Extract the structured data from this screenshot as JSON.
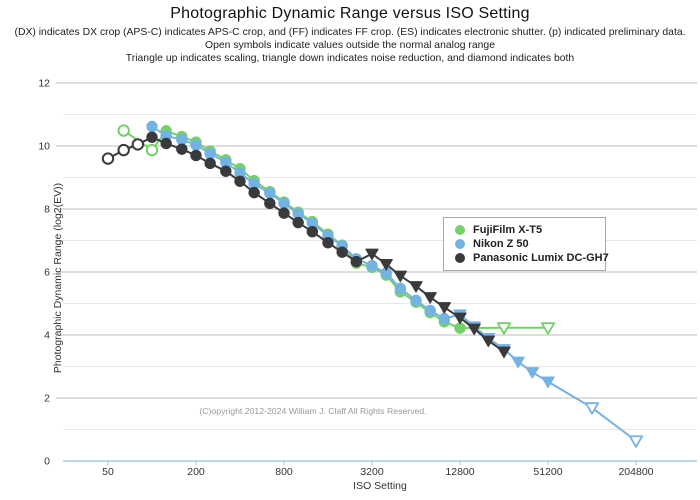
{
  "page": {
    "title": "Photographic Dynamic Range versus ISO Setting",
    "subtitle_lines": [
      "(DX) indicates DX crop (APS-C) indicates APS-C crop, and (FF) indicates FF crop. (ES) indicates electronic shutter. (p) indicated preliminary data.",
      "Open symbols indicate values outside the normal analog range",
      "Triangle up indicates scaling, triangle down indicates noise reduction, and diamond indicates both"
    ],
    "copyright": "(C)opyright 2012-2024 William J. Claff All Rights Reserved."
  },
  "chart_data": {
    "type": "line",
    "title": "Photographic Dynamic Range versus ISO Setting",
    "xlabel": "ISO Setting",
    "ylabel": "Photographic Dynamic Range (log2(EV))",
    "x_scale": "log2",
    "x_ticks": [
      50,
      200,
      800,
      3200,
      12800,
      51200,
      204800
    ],
    "ylim": [
      0,
      12
    ],
    "y_major_ticks": [
      0,
      2,
      4,
      6,
      8,
      10,
      12
    ],
    "grid": true,
    "legend_position": "middle-right",
    "marker_legend": {
      "open": "values outside the normal analog range",
      "triangle_down": "noise reduction",
      "triangle_up": "scaling",
      "diamond": "both"
    },
    "series": [
      {
        "name": "FujiFilm X-T5",
        "color": "#74d168",
        "points": [
          [
            64,
            10.49,
            "o"
          ],
          [
            100,
            9.87,
            "o"
          ],
          [
            125,
            10.48,
            "c"
          ],
          [
            160,
            10.3,
            "c"
          ],
          [
            200,
            10.12,
            "c"
          ],
          [
            250,
            9.84,
            "c"
          ],
          [
            320,
            9.56,
            "c"
          ],
          [
            400,
            9.28,
            "c"
          ],
          [
            500,
            8.9,
            "c"
          ],
          [
            640,
            8.55,
            "c"
          ],
          [
            800,
            8.22,
            "c"
          ],
          [
            1000,
            7.9,
            "c"
          ],
          [
            1250,
            7.6,
            "c"
          ],
          [
            1600,
            7.2,
            "c"
          ],
          [
            2000,
            6.85,
            "c"
          ],
          [
            2500,
            6.28,
            "c"
          ],
          [
            3200,
            6.15,
            "c"
          ],
          [
            4000,
            5.9,
            "c"
          ],
          [
            5000,
            5.37,
            "c"
          ],
          [
            6400,
            5.04,
            "c"
          ],
          [
            8000,
            4.71,
            "c"
          ],
          [
            10000,
            4.42,
            "c"
          ],
          [
            12800,
            4.22,
            "c"
          ],
          [
            25600,
            4.23,
            "ot"
          ],
          [
            51200,
            4.23,
            "ot"
          ]
        ]
      },
      {
        "name": "Nikon Z 50",
        "color": "#74b2e4",
        "points": [
          [
            100,
            10.62,
            "c"
          ],
          [
            125,
            10.32,
            "c"
          ],
          [
            160,
            10.2,
            "c"
          ],
          [
            200,
            10.03,
            "c"
          ],
          [
            250,
            9.76,
            "c"
          ],
          [
            320,
            9.48,
            "c"
          ],
          [
            400,
            9.14,
            "c"
          ],
          [
            500,
            8.8,
            "c"
          ],
          [
            640,
            8.5,
            "c"
          ],
          [
            800,
            8.18,
            "c"
          ],
          [
            1000,
            7.85,
            "c"
          ],
          [
            1250,
            7.55,
            "c"
          ],
          [
            1600,
            7.15,
            "c"
          ],
          [
            2000,
            6.83,
            "c"
          ],
          [
            2500,
            6.42,
            "c"
          ],
          [
            3200,
            6.2,
            "c"
          ],
          [
            4000,
            5.97,
            "c"
          ],
          [
            5000,
            5.48,
            "c"
          ],
          [
            6400,
            5.1,
            "c"
          ],
          [
            8000,
            4.78,
            "c"
          ],
          [
            10000,
            4.52,
            "c"
          ],
          [
            12800,
            4.65,
            "t"
          ],
          [
            16000,
            4.27,
            "t"
          ],
          [
            20000,
            3.9,
            "t"
          ],
          [
            25600,
            3.55,
            "t"
          ],
          [
            32000,
            3.15,
            "t"
          ],
          [
            40000,
            2.82,
            "t"
          ],
          [
            51200,
            2.52,
            "t"
          ],
          [
            102400,
            1.69,
            "ot"
          ],
          [
            204800,
            0.64,
            "ot"
          ]
        ]
      },
      {
        "name": "Panasonic Lumix DC-GH7",
        "color": "#3a3a3c",
        "points": [
          [
            50,
            9.6,
            "o"
          ],
          [
            64,
            9.87,
            "o"
          ],
          [
            80,
            10.05,
            "o"
          ],
          [
            100,
            10.28,
            "c"
          ],
          [
            125,
            10.08,
            "c"
          ],
          [
            160,
            9.9,
            "c"
          ],
          [
            200,
            9.7,
            "c"
          ],
          [
            250,
            9.45,
            "c"
          ],
          [
            320,
            9.2,
            "c"
          ],
          [
            400,
            8.88,
            "c"
          ],
          [
            500,
            8.52,
            "c"
          ],
          [
            640,
            8.18,
            "c"
          ],
          [
            800,
            7.87,
            "c"
          ],
          [
            1000,
            7.57,
            "c"
          ],
          [
            1250,
            7.28,
            "c"
          ],
          [
            1600,
            6.93,
            "c"
          ],
          [
            2000,
            6.63,
            "c"
          ],
          [
            2500,
            6.33,
            "c"
          ],
          [
            3200,
            6.58,
            "t"
          ],
          [
            4000,
            6.25,
            "t"
          ],
          [
            5000,
            5.88,
            "t"
          ],
          [
            6400,
            5.55,
            "t"
          ],
          [
            8000,
            5.2,
            "t"
          ],
          [
            10000,
            4.88,
            "t"
          ],
          [
            12800,
            4.55,
            "t"
          ],
          [
            16000,
            4.2,
            "t"
          ],
          [
            20000,
            3.82,
            "t"
          ],
          [
            25600,
            3.47,
            "t"
          ]
        ]
      }
    ],
    "marker_codes": {
      "c": "filled circle",
      "o": "open circle",
      "t": "filled triangle-down",
      "ot": "open triangle-down"
    }
  }
}
